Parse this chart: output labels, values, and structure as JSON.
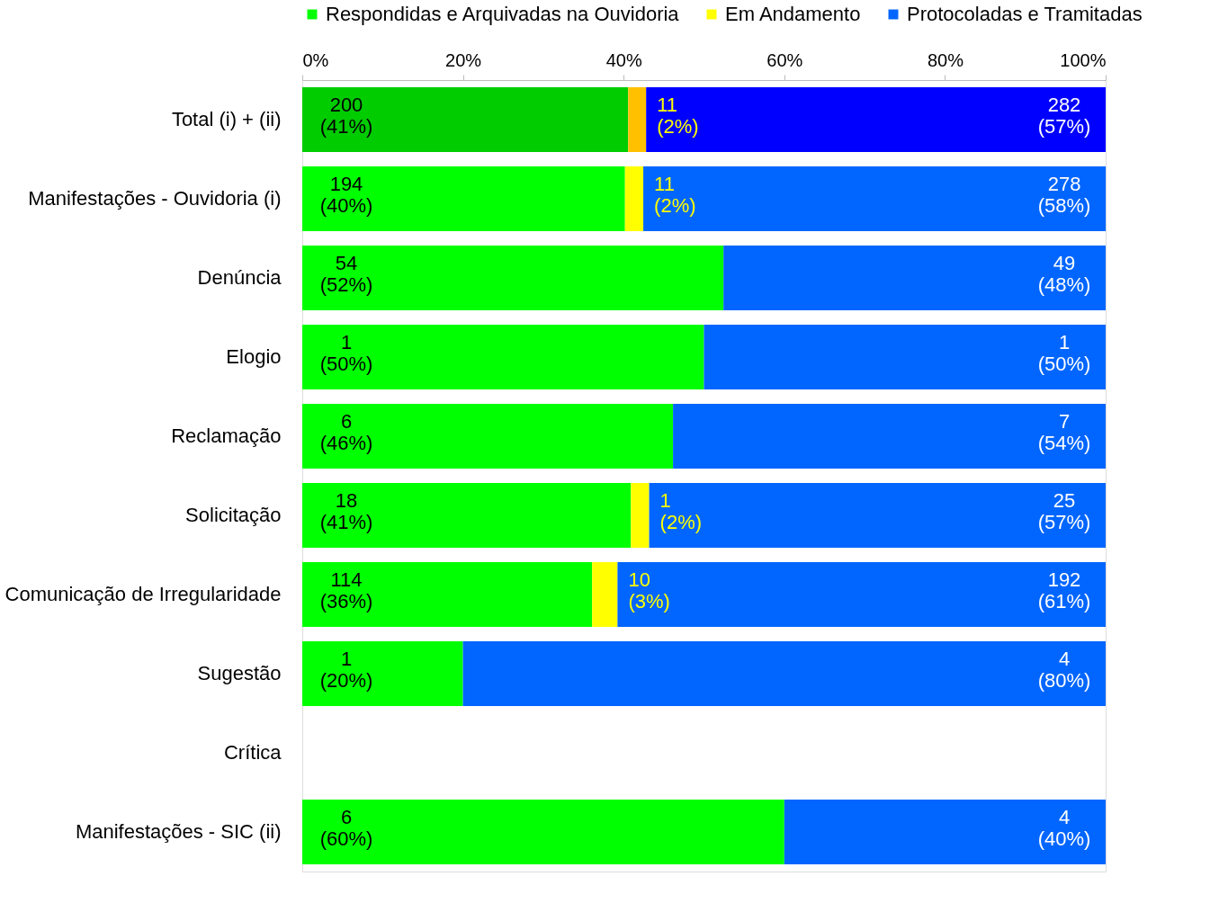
{
  "chart_data": {
    "type": "bar",
    "orientation": "horizontal",
    "stacked": true,
    "legend": "top",
    "grid": false,
    "categories": [
      "Total (i) + (ii)",
      "Manifestações - Ouvidoria (i)",
      "Denúncia",
      "Elogio",
      "Reclamação",
      "Solicitação",
      "Comunicação de Irregularidade",
      "Sugestão",
      "Crítica",
      "Manifestações - SIC (ii)"
    ],
    "xlim": [
      0,
      100
    ],
    "xticks": [
      {
        "value": 0,
        "label": "0%"
      },
      {
        "value": 20,
        "label": "20%"
      },
      {
        "value": 40,
        "label": "40%"
      },
      {
        "value": 60,
        "label": "60%"
      },
      {
        "value": 80,
        "label": "80%"
      },
      {
        "value": 100,
        "label": "100%"
      }
    ],
    "series": [
      {
        "name": "Respondidas e Arquivadas na Ouvidoria",
        "color": "#00ff00",
        "colors": [
          "#00cc00",
          "#00ff00",
          "#00ff00",
          "#00ff00",
          "#00ff00",
          "#00ff00",
          "#00ff00",
          "#00ff00",
          "#00ff00",
          "#00ff00"
        ],
        "values": [
          40.57,
          40.17,
          52.43,
          50,
          46.15,
          40.91,
          36.08,
          20,
          null,
          60
        ],
        "value_labels": [
          "200\n(41%)",
          "194\n(40%)",
          "54\n(52%)",
          "1\n(50%)",
          "6\n(46%)",
          "18\n(41%)",
          "114\n(36%)",
          "1\n(20%)",
          null,
          "6\n(60%)"
        ]
      },
      {
        "name": "Em Andamento",
        "color": "#ffff00",
        "colors": [
          "#ffc000",
          "#ffff00",
          "#ffff00",
          "#ffff00",
          "#ffff00",
          "#ffff00",
          "#ffff00",
          "#ffff00",
          "#ffff00",
          "#ffff00"
        ],
        "values": [
          2.23,
          2.28,
          null,
          null,
          null,
          2.27,
          3.16,
          null,
          null,
          null
        ],
        "value_labels": [
          "11\n(2%)",
          "11\n(2%)",
          null,
          null,
          null,
          "1\n(2%)",
          "10\n(3%)",
          null,
          null,
          null
        ]
      },
      {
        "name": "Protocoladas e Tramitadas",
        "color": "#0066ff",
        "colors": [
          "#0000ff",
          "#0066ff",
          "#0066ff",
          "#0066ff",
          "#0066ff",
          "#0066ff",
          "#0066ff",
          "#0066ff",
          "#0066ff",
          "#0066ff"
        ],
        "values": [
          57.2,
          57.56,
          47.57,
          50,
          53.85,
          56.82,
          60.76,
          80,
          null,
          40
        ],
        "value_labels": [
          "282\n(57%)",
          "278\n(58%)",
          "49\n(48%)",
          "1\n(50%)",
          "7\n(54%)",
          "25\n(57%)",
          "192\n(61%)",
          "4\n(80%)",
          null,
          "4\n(40%)"
        ]
      }
    ]
  }
}
